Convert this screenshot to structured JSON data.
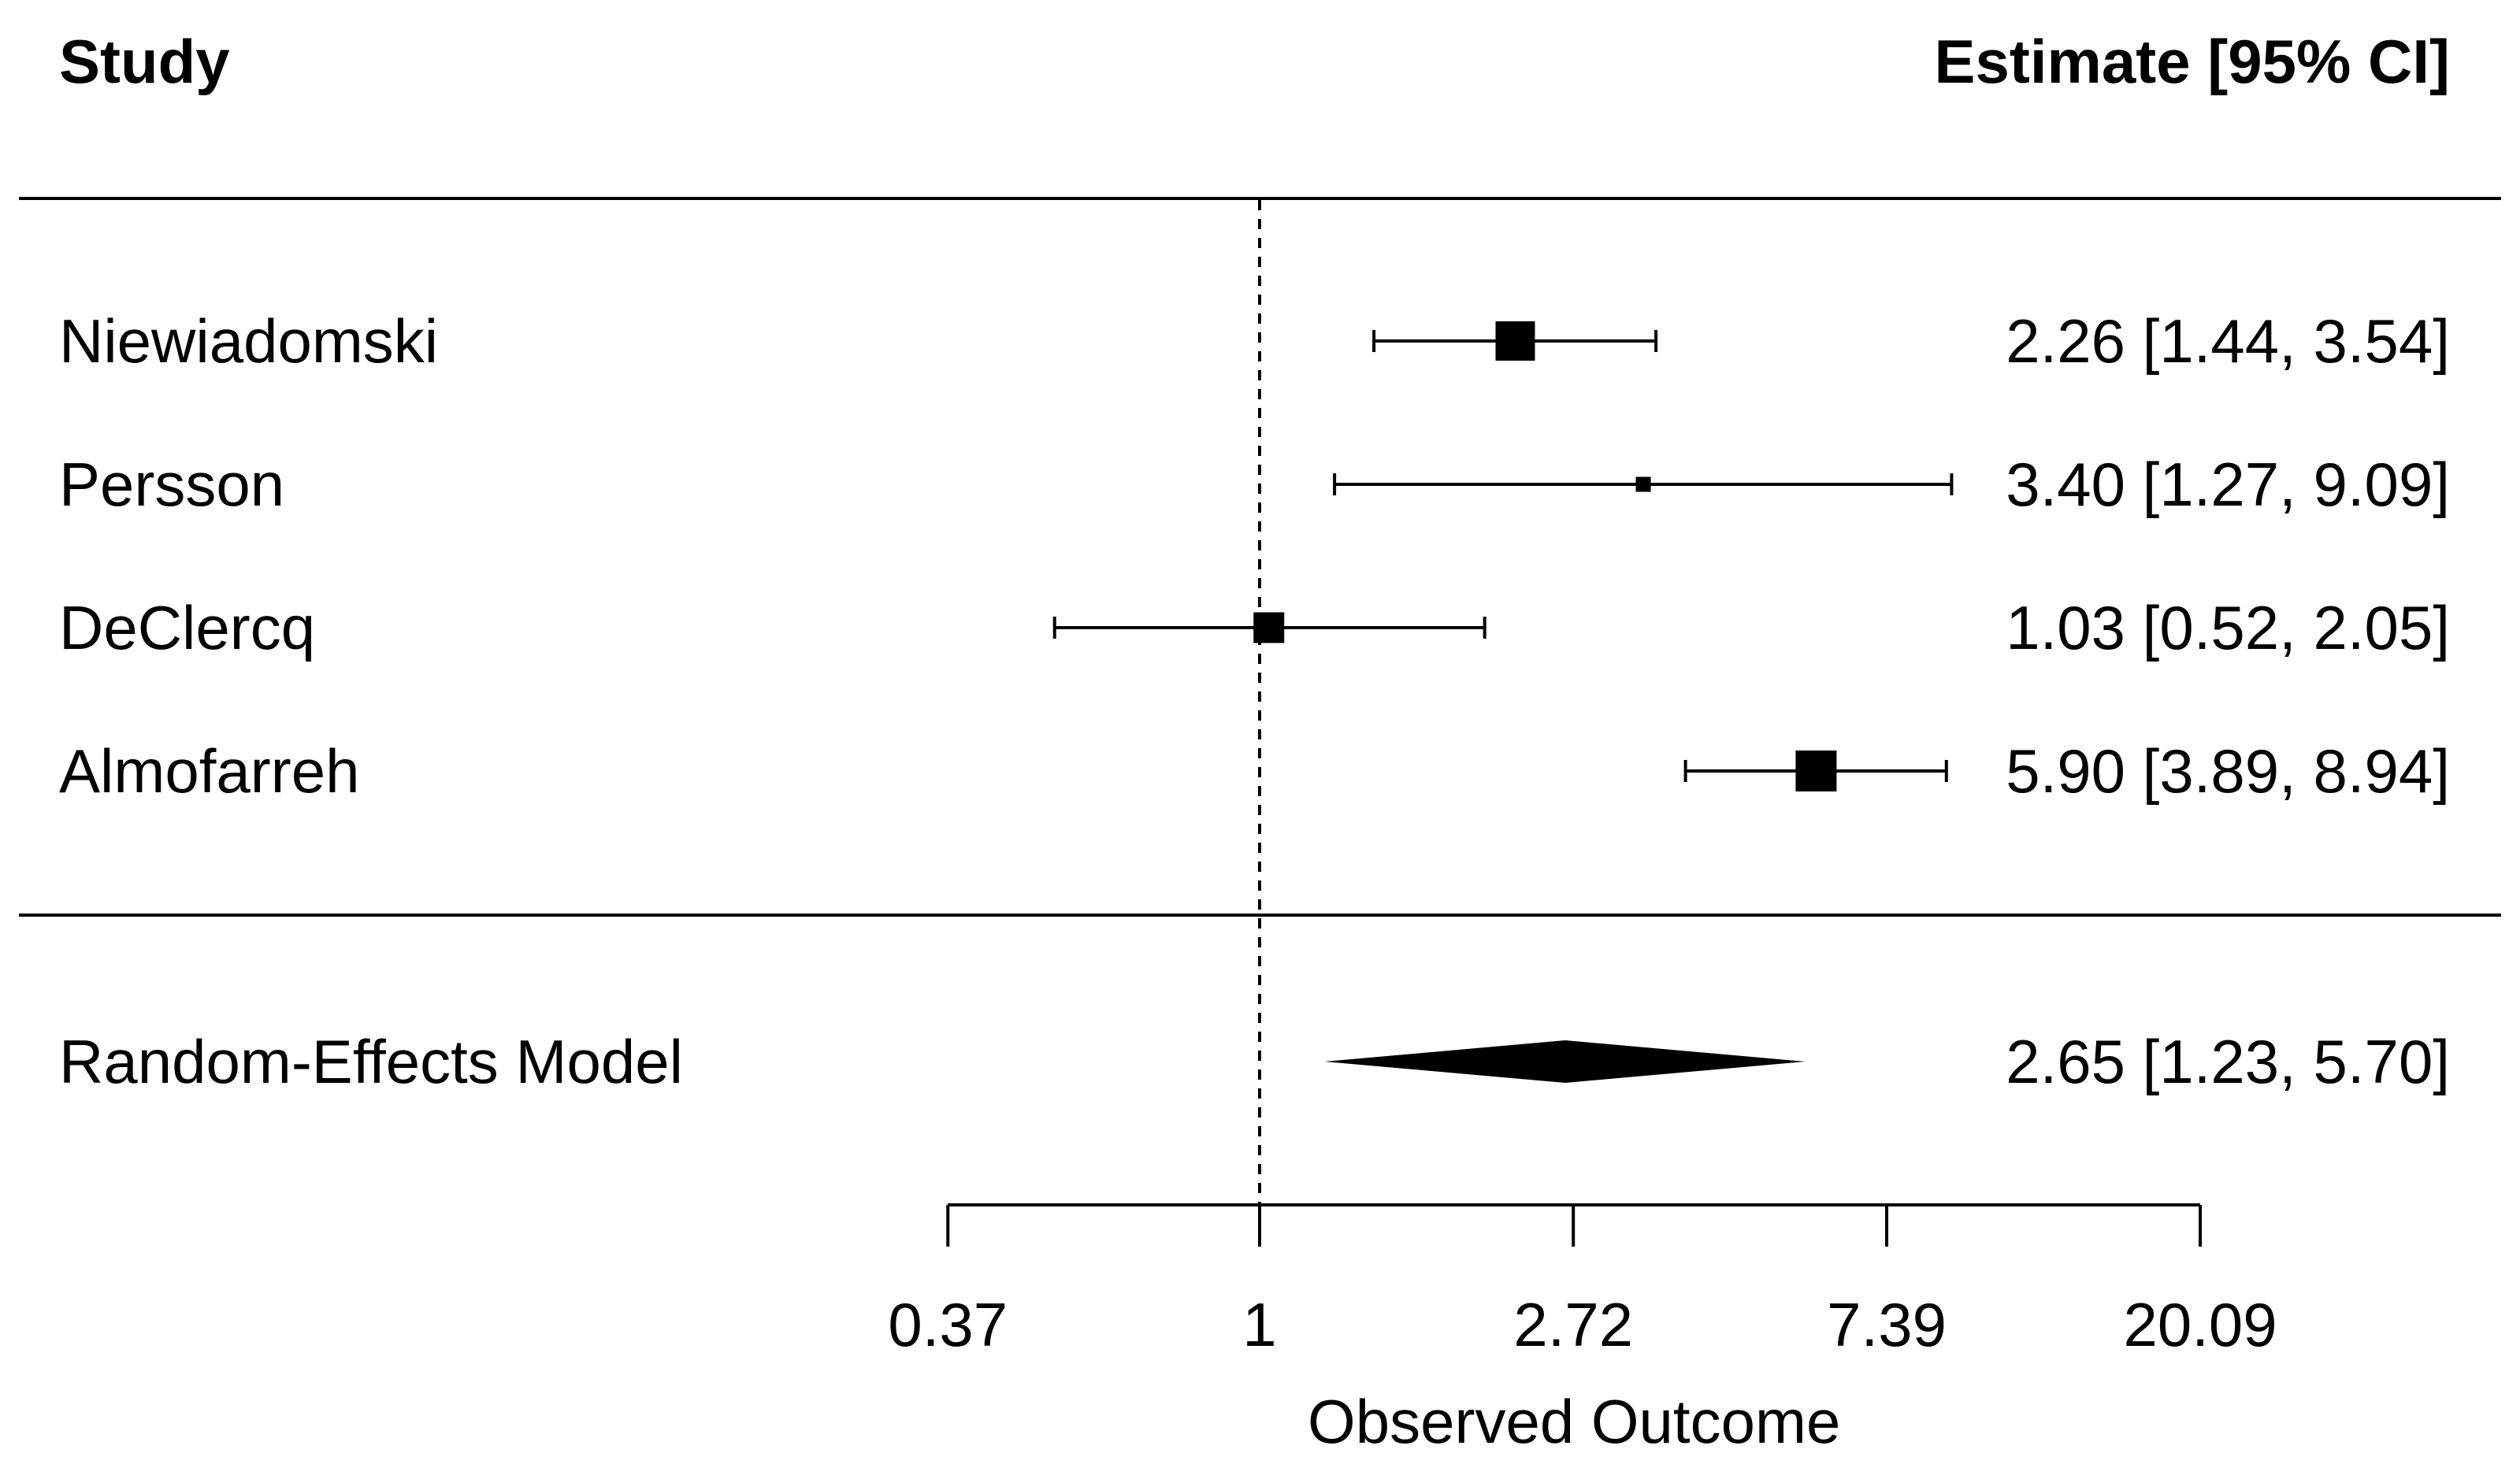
{
  "header": {
    "study": "Study",
    "estimate": "Estimate [95% CI]"
  },
  "chart_data": {
    "type": "forest",
    "x_axis": {
      "label": "Observed Outcome",
      "scale": "log",
      "tick_labels": [
        "0.37",
        "1",
        "2.72",
        "7.39",
        "20.09"
      ],
      "tick_values": [
        0.37,
        1,
        2.72,
        7.39,
        20.09
      ],
      "range": [
        0.37,
        20.09
      ],
      "reference_line": 1
    },
    "studies": [
      {
        "label": "Niewiadomski",
        "estimate": 2.26,
        "ci_lower": 1.44,
        "ci_upper": 3.54,
        "estimate_text": "2.26 [1.44, 3.54]",
        "marker_size_px": 50
      },
      {
        "label": "Persson",
        "estimate": 3.4,
        "ci_lower": 1.27,
        "ci_upper": 9.09,
        "estimate_text": "3.40 [1.27, 9.09]",
        "marker_size_px": 19
      },
      {
        "label": "DeClercq",
        "estimate": 1.03,
        "ci_lower": 0.52,
        "ci_upper": 2.05,
        "estimate_text": "1.03 [0.52, 2.05]",
        "marker_size_px": 39
      },
      {
        "label": "Almofarreh",
        "estimate": 5.9,
        "ci_lower": 3.89,
        "ci_upper": 8.94,
        "estimate_text": "5.90 [3.89, 8.94]",
        "marker_size_px": 52
      }
    ],
    "summary": {
      "label": "Random-Effects Model",
      "estimate": 2.65,
      "ci_lower": 1.23,
      "ci_upper": 5.7,
      "estimate_text": "2.65 [1.23, 5.70]"
    }
  },
  "colors": {
    "ink": "#000000",
    "background": "#ffffff"
  }
}
